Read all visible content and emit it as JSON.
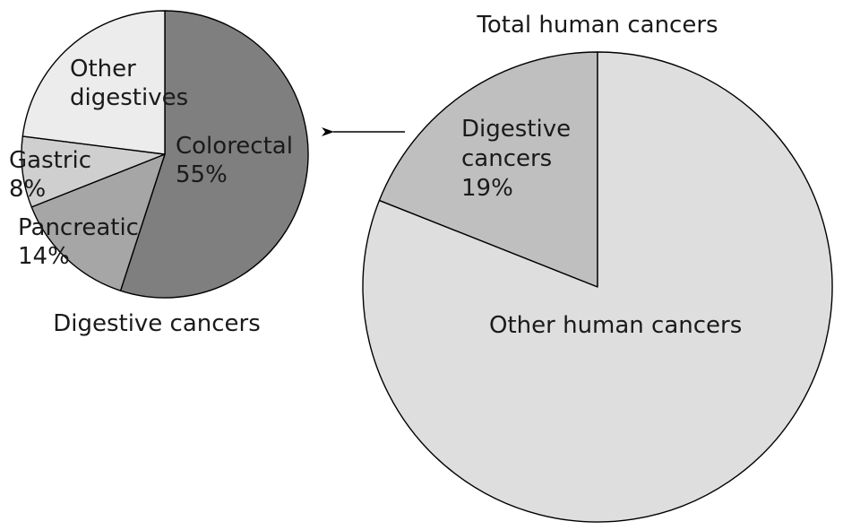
{
  "chart_data": [
    {
      "type": "pie",
      "title": "Digestive cancers",
      "start": "top",
      "direction": "clockwise",
      "slices": [
        {
          "key": "colorectal",
          "label_lines": [
            "Colorectal",
            "55%"
          ],
          "value": 55,
          "color": "#7f7f7f"
        },
        {
          "key": "pancreatic",
          "label_lines": [
            "Pancreatic",
            "14%"
          ],
          "value": 14,
          "color": "#a6a6a6"
        },
        {
          "key": "gastric",
          "label_lines": [
            "Gastric",
            "8%"
          ],
          "value": 8,
          "color": "#cfcfcf"
        },
        {
          "key": "other-digestives",
          "label_lines": [
            "Other",
            "digestives"
          ],
          "value": 23,
          "color": "#ececec"
        }
      ]
    },
    {
      "type": "pie",
      "title": "Total human cancers",
      "start": "top",
      "direction": "counterclockwise",
      "slices": [
        {
          "key": "digestive",
          "label_lines": [
            "Digestive",
            "cancers",
            "19%"
          ],
          "value": 19,
          "color": "#bfbfbf"
        },
        {
          "key": "other-human",
          "label_lines": [
            "Other human cancers"
          ],
          "value": 81,
          "color": "#dedede"
        }
      ]
    }
  ]
}
